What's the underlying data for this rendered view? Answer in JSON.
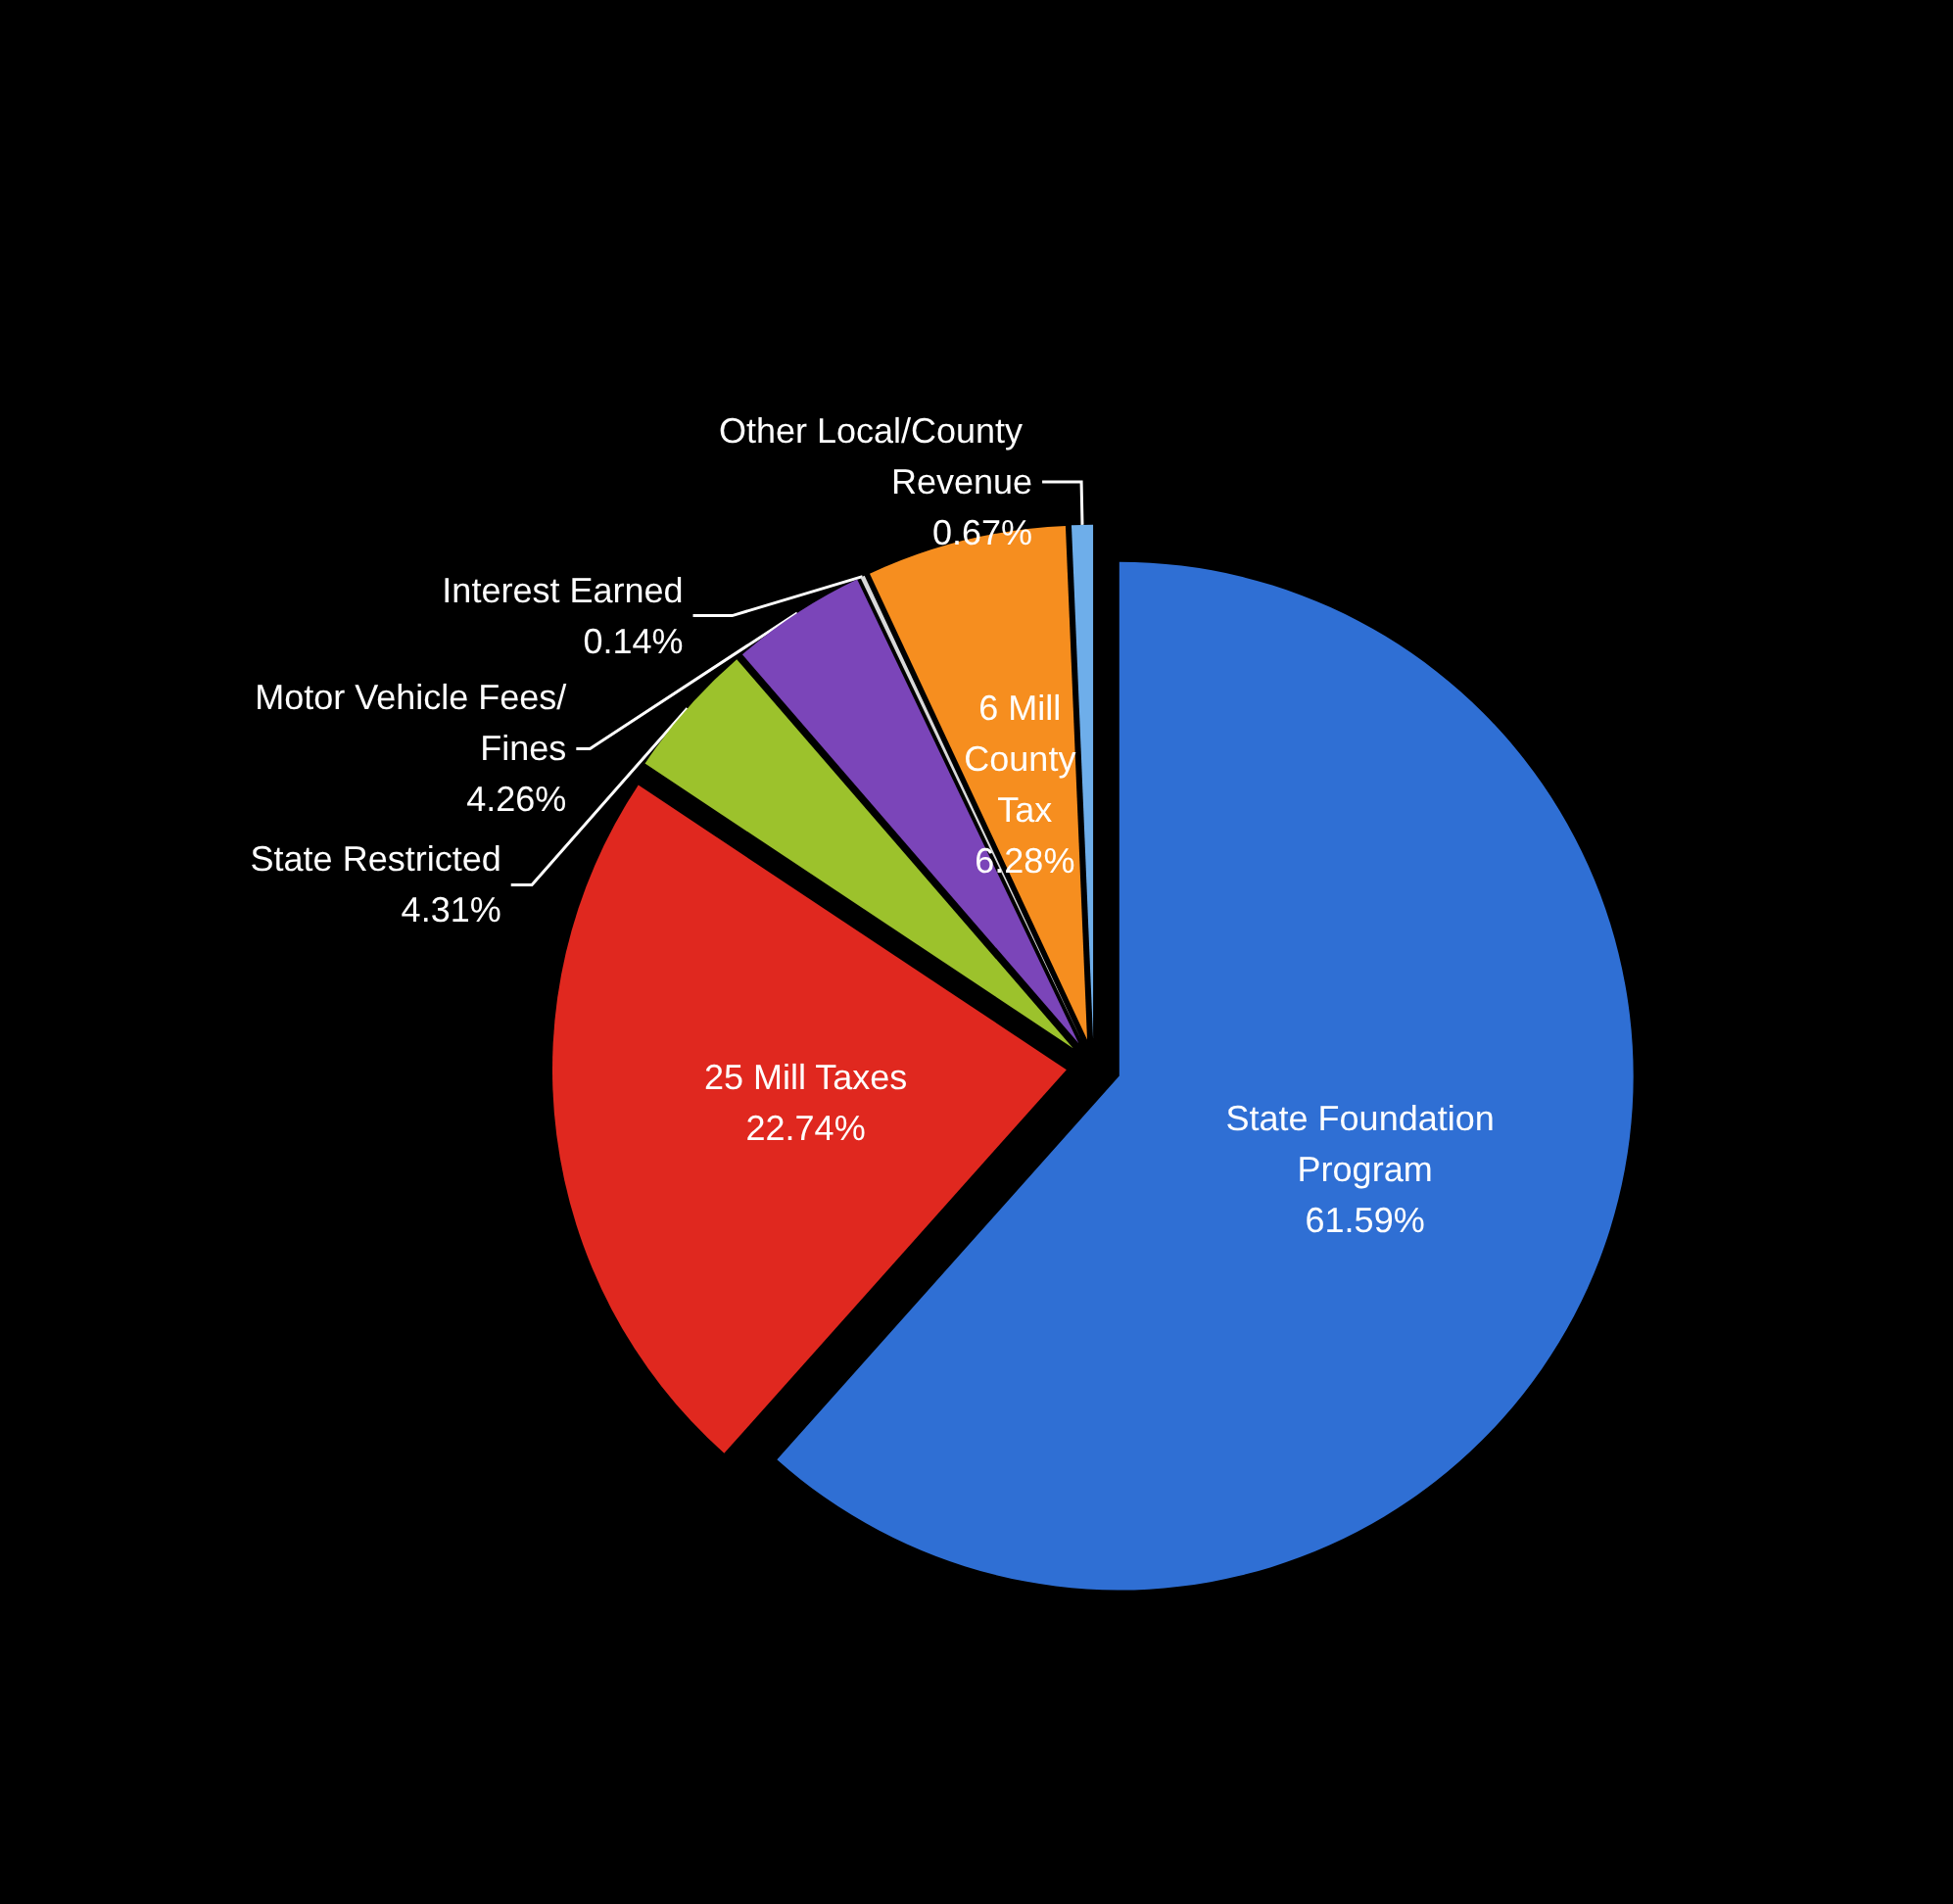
{
  "chart_data": {
    "type": "pie",
    "categories": [
      "State Foundation Program",
      "25 Mill Taxes",
      "State Restricted",
      "Motor Vehicle Fees/Fines",
      "Interest Earned",
      "6 Mill County Tax",
      "Other Local/County Revenue"
    ],
    "values": [
      61.59,
      22.74,
      4.31,
      4.26,
      0.14,
      6.28,
      0.67
    ],
    "value_labels": [
      "61.59%",
      "22.74%",
      "4.31%",
      "4.26%",
      "0.14%",
      "6.28%",
      "0.67%"
    ],
    "colors": [
      "#2f6fd4",
      "#e0281f",
      "#9cc22c",
      "#7b45b9",
      "#d9d9d9",
      "#f68e1f",
      "#6eaeea"
    ],
    "legend": false
  }
}
